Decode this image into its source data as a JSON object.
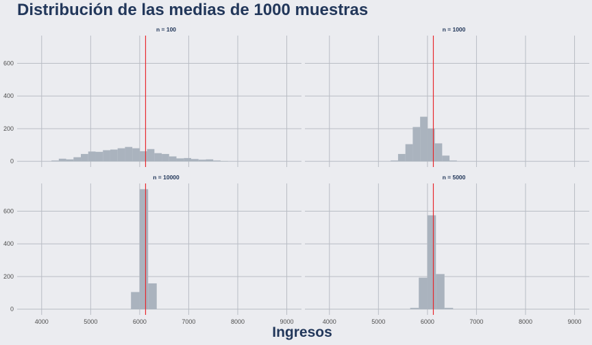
{
  "chart_data": {
    "type": "bar",
    "title": "Distribución de las medias de 1000 muestras",
    "xlabel": "Ingresos",
    "ylabel": "",
    "x_ticks": [
      4000,
      5000,
      6000,
      7000,
      8000,
      9000
    ],
    "y_ticks": [
      0,
      200,
      400,
      600
    ],
    "xlim": [
      3500,
      9300
    ],
    "ylim": [
      -35,
      770
    ],
    "grid": true,
    "reference_line": {
      "x": 6120,
      "color": "#e8262b"
    },
    "bar_color": "#aab3be",
    "grid_color": "#b8bcc4",
    "panels": [
      {
        "label": "n = 100",
        "bin_width": 150,
        "bins": [
          {
            "x": 4275,
            "y": 5
          },
          {
            "x": 4425,
            "y": 16
          },
          {
            "x": 4575,
            "y": 12
          },
          {
            "x": 4725,
            "y": 25
          },
          {
            "x": 4875,
            "y": 45
          },
          {
            "x": 5025,
            "y": 60
          },
          {
            "x": 5175,
            "y": 58
          },
          {
            "x": 5325,
            "y": 68
          },
          {
            "x": 5475,
            "y": 72
          },
          {
            "x": 5625,
            "y": 80
          },
          {
            "x": 5775,
            "y": 88
          },
          {
            "x": 5925,
            "y": 80
          },
          {
            "x": 6075,
            "y": 62
          },
          {
            "x": 6225,
            "y": 75
          },
          {
            "x": 6375,
            "y": 50
          },
          {
            "x": 6525,
            "y": 45
          },
          {
            "x": 6675,
            "y": 30
          },
          {
            "x": 6825,
            "y": 18
          },
          {
            "x": 6975,
            "y": 20
          },
          {
            "x": 7125,
            "y": 14
          },
          {
            "x": 7275,
            "y": 10
          },
          {
            "x": 7425,
            "y": 12
          },
          {
            "x": 7575,
            "y": 5
          },
          {
            "x": 7725,
            "y": 2
          }
        ]
      },
      {
        "label": "n = 1000",
        "bin_width": 150,
        "bins": [
          {
            "x": 5325,
            "y": 5
          },
          {
            "x": 5475,
            "y": 45
          },
          {
            "x": 5625,
            "y": 105
          },
          {
            "x": 5775,
            "y": 210
          },
          {
            "x": 5925,
            "y": 273
          },
          {
            "x": 6075,
            "y": 200
          },
          {
            "x": 6225,
            "y": 110
          },
          {
            "x": 6375,
            "y": 35
          },
          {
            "x": 6525,
            "y": 5
          }
        ]
      },
      {
        "label": "n = 10000",
        "bin_width": 175,
        "bins": [
          {
            "x": 5910,
            "y": 105
          },
          {
            "x": 6085,
            "y": 735
          },
          {
            "x": 6260,
            "y": 158
          }
        ]
      },
      {
        "label": "n = 5000",
        "bin_width": 175,
        "bins": [
          {
            "x": 5735,
            "y": 8
          },
          {
            "x": 5910,
            "y": 193
          },
          {
            "x": 6085,
            "y": 575
          },
          {
            "x": 6260,
            "y": 215
          },
          {
            "x": 6435,
            "y": 8
          }
        ]
      }
    ]
  }
}
